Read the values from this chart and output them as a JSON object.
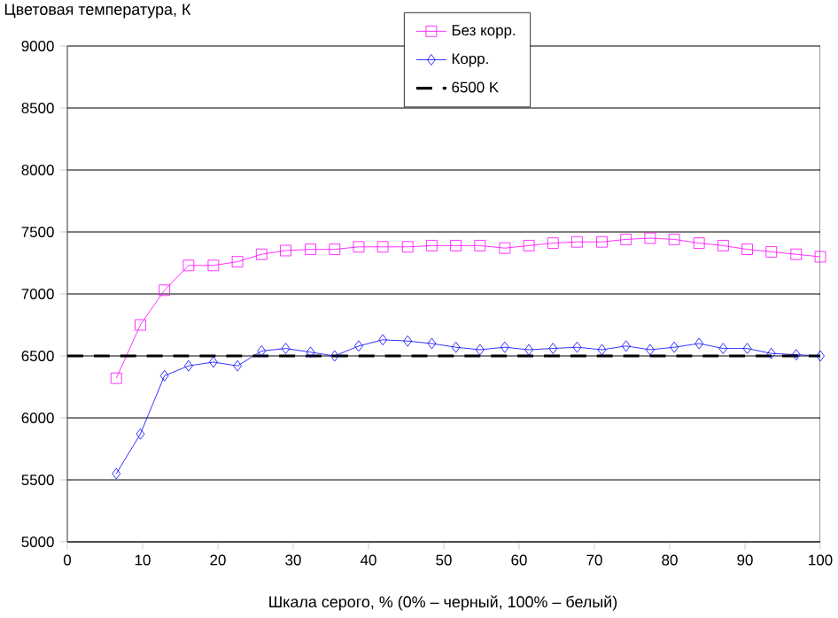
{
  "chart_data": {
    "type": "line",
    "ylabel": "Цветовая температура, К",
    "xlabel": "Шкала серого, % (0% – черный, 100% – белый)",
    "x": [
      6.5,
      9.7,
      12.9,
      16.1,
      19.4,
      22.6,
      25.8,
      29,
      32.3,
      35.5,
      38.7,
      41.9,
      45.2,
      48.4,
      51.6,
      54.8,
      58.1,
      61.3,
      64.5,
      67.7,
      71,
      74.2,
      77.4,
      80.6,
      83.9,
      87.1,
      90.3,
      93.5,
      96.8,
      100
    ],
    "series": [
      {
        "name": "Без корр.",
        "color": "#ff00ff",
        "marker": "square",
        "values": [
          6320,
          6750,
          7030,
          7230,
          7230,
          7260,
          7320,
          7350,
          7360,
          7360,
          7380,
          7380,
          7380,
          7390,
          7390,
          7390,
          7370,
          7390,
          7410,
          7420,
          7420,
          7440,
          7450,
          7440,
          7410,
          7390,
          7360,
          7340,
          7320,
          7300
        ]
      },
      {
        "name": "Корр.",
        "color": "#0000ff",
        "marker": "diamond",
        "values": [
          5550,
          5870,
          6340,
          6420,
          6450,
          6420,
          6540,
          6560,
          6530,
          6500,
          6580,
          6630,
          6620,
          6600,
          6570,
          6550,
          6570,
          6550,
          6560,
          6570,
          6550,
          6580,
          6550,
          6570,
          6600,
          6560,
          6560,
          6520,
          6510,
          6500
        ]
      }
    ],
    "ref_lines": [
      {
        "axis": "y",
        "value": 6500,
        "label": "6500 K",
        "color": "#000000",
        "line_style": "dashed"
      }
    ],
    "xlim": [
      0,
      100
    ],
    "ylim": [
      5000,
      9000
    ],
    "xticks": [
      0,
      10,
      20,
      30,
      40,
      50,
      60,
      70,
      80,
      90,
      100
    ],
    "yticks": [
      5000,
      5500,
      6000,
      6500,
      7000,
      7500,
      8000,
      8500,
      9000
    ],
    "grid": "y",
    "legend": "top right"
  }
}
